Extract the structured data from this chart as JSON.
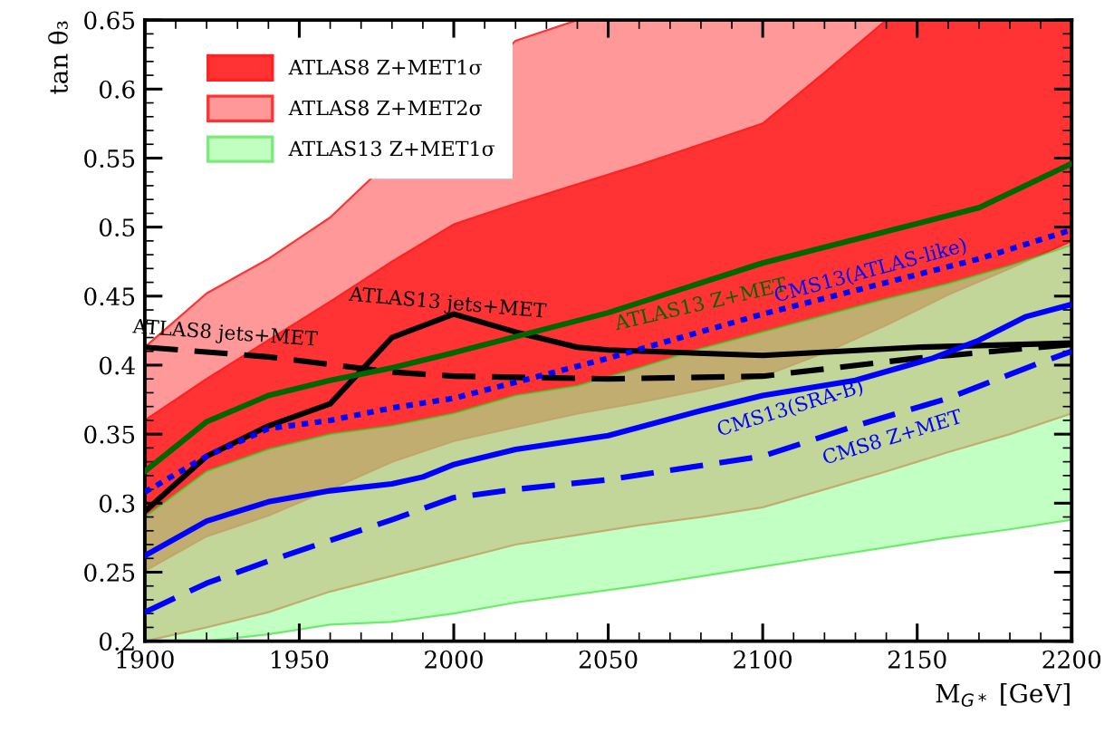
{
  "chart_data": {
    "type": "line",
    "xlabel": "M$_{G*}$ [GeV]",
    "ylabel": "tan θ₃",
    "xlim": [
      1900,
      2200
    ],
    "ylim": [
      0.2,
      0.65
    ],
    "xticks": [
      1900,
      1950,
      2000,
      2050,
      2100,
      2150,
      2200
    ],
    "yticks": [
      0.2,
      0.25,
      0.3,
      0.35,
      0.4,
      0.45,
      0.5,
      0.55,
      0.6,
      0.65
    ],
    "grid": false,
    "legend": "top left",
    "series": [
      {
        "type": "area",
        "name": "ATLAS8 Z+MET1σ",
        "color": "#ff3333",
        "x": [
          1900,
          1920,
          1940,
          1960,
          1980,
          2000,
          2020,
          2040,
          2060,
          2080,
          2100,
          2120,
          2140,
          2160,
          2180,
          2200
        ],
        "values": [
          null,
          null,
          null,
          null,
          null,
          null,
          null,
          null,
          null,
          null,
          null,
          null,
          null,
          null,
          null,
          null
        ],
        "upper": [
          0.36,
          0.39,
          0.418,
          0.446,
          0.475,
          0.502,
          0.517,
          0.531,
          0.545,
          0.56,
          0.575,
          0.612,
          0.65,
          0.65,
          0.65,
          0.65
        ],
        "lower": [
          0.251,
          0.276,
          0.291,
          0.31,
          0.33,
          0.345,
          0.355,
          0.365,
          0.373,
          0.382,
          0.392,
          0.409,
          0.429,
          0.451,
          0.47,
          0.49
        ]
      },
      {
        "type": "area",
        "name": "ATLAS8 Z+MET2σ",
        "color": "#ff9999",
        "x": [
          1900,
          1920,
          1940,
          1960,
          2020,
          2040,
          2060,
          2080,
          2100,
          2120,
          2140,
          2160,
          2180,
          2200
        ],
        "values": [
          null,
          null,
          null,
          null,
          null,
          null,
          null,
          null,
          null,
          null,
          null,
          null,
          null,
          null
        ],
        "upper": [
          0.413,
          0.452,
          0.477,
          0.507,
          0.635,
          0.65,
          0.65,
          0.65,
          0.65,
          0.65,
          0.65,
          0.65,
          0.65,
          0.65
        ],
        "lower": [
          0.2,
          0.21,
          0.221,
          0.236,
          0.27,
          0.277,
          0.284,
          0.29,
          0.297,
          0.31,
          0.323,
          0.337,
          0.35,
          0.365
        ]
      },
      {
        "type": "area",
        "name": "ATLAS13 Z+MET1σ",
        "color": "#99ff99",
        "x": [
          1900,
          1920,
          1940,
          1960,
          1980,
          2000,
          2020,
          2040,
          2060,
          2080,
          2100,
          2120,
          2140,
          2160,
          2180,
          2200
        ],
        "values": [
          null,
          null,
          null,
          null,
          null,
          null,
          null,
          null,
          null,
          null,
          null,
          null,
          null,
          null,
          null,
          null
        ],
        "upper": [
          0.29,
          0.323,
          0.339,
          0.35,
          0.356,
          0.365,
          0.378,
          0.385,
          0.398,
          0.412,
          0.424,
          0.436,
          0.448,
          0.459,
          0.472,
          0.487
        ],
        "lower": [
          0.2,
          0.2,
          0.205,
          0.212,
          0.214,
          0.22,
          0.228,
          0.234,
          0.24,
          0.247,
          0.254,
          0.261,
          0.268,
          0.275,
          0.281,
          0.288
        ]
      },
      {
        "name": "ATLAS8 jets+MET",
        "color": "#000000",
        "line_style": "dashed",
        "x": [
          1900,
          1940,
          1980,
          2000,
          2050,
          2100,
          2150,
          2200
        ],
        "values": [
          0.413,
          0.406,
          0.395,
          0.392,
          0.39,
          0.392,
          0.405,
          0.415
        ]
      },
      {
        "name": "ATLAS13 jets+MET",
        "color": "#000000",
        "line_style": "solid",
        "x": [
          1900,
          1920,
          1940,
          1960,
          1980,
          2000,
          2020,
          2040,
          2050,
          2100,
          2150,
          2200
        ],
        "values": [
          0.294,
          0.334,
          0.356,
          0.372,
          0.42,
          0.437,
          0.424,
          0.413,
          0.411,
          0.407,
          0.413,
          0.416
        ]
      },
      {
        "name": "ATLAS13 Z+MET",
        "color": "#006600",
        "line_style": "solid",
        "x": [
          1900,
          1920,
          1940,
          1960,
          1980,
          2000,
          2050,
          2100,
          2170,
          2200
        ],
        "values": [
          0.323,
          0.359,
          0.378,
          0.389,
          0.398,
          0.409,
          0.438,
          0.474,
          0.514,
          0.546
        ]
      },
      {
        "name": "CMS13(ATLAS-like)",
        "color": "#0000ff",
        "line_style": "dotted",
        "x": [
          1900,
          1920,
          1940,
          1960,
          1980,
          2000,
          2050,
          2100,
          2170,
          2200
        ],
        "values": [
          0.308,
          0.334,
          0.354,
          0.36,
          0.369,
          0.376,
          0.405,
          0.437,
          0.477,
          0.498
        ]
      },
      {
        "name": "CMS13(SRA-B)",
        "color": "#0000ff",
        "line_style": "solid",
        "x": [
          1900,
          1920,
          1940,
          1960,
          1980,
          1990,
          2000,
          2020,
          2050,
          2080,
          2100,
          2130,
          2155,
          2170,
          2185,
          2200
        ],
        "values": [
          0.262,
          0.287,
          0.301,
          0.309,
          0.314,
          0.319,
          0.328,
          0.339,
          0.349,
          0.367,
          0.378,
          0.389,
          0.405,
          0.418,
          0.435,
          0.444
        ]
      },
      {
        "name": "CMS8 Z+MET",
        "color": "#0000ff",
        "line_style": "dashed",
        "x": [
          1900,
          1920,
          1940,
          1960,
          1980,
          2000,
          2020,
          2050,
          2100,
          2130,
          2160,
          2190,
          2200
        ],
        "values": [
          0.221,
          0.242,
          0.258,
          0.273,
          0.288,
          0.304,
          0.31,
          0.317,
          0.334,
          0.356,
          0.376,
          0.402,
          0.41
        ]
      }
    ]
  }
}
